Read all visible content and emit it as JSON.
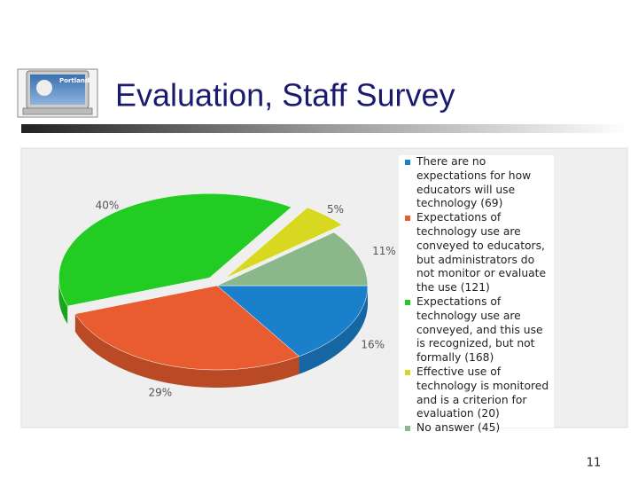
{
  "slide": {
    "title": "Evaluation, Staff Survey",
    "page_number": "11",
    "logo_text": "Portland"
  },
  "chart_data": {
    "type": "pie",
    "categories": [
      "There are no expectations for how educators will use technology (69)",
      "Expectations of technology use are conveyed to educators, but administrators do not monitor or evaluate the use (121)",
      "Expectations of technology use are conveyed, and this use is recognized, but not formally (168)",
      "Effective use of technology is monitored and is a criterion for evaluation (20)",
      "No answer (45)"
    ],
    "values": [
      16,
      29,
      40,
      5,
      11
    ],
    "value_labels": [
      "16%",
      "29%",
      "40%",
      "5%",
      "11%"
    ],
    "colors": [
      "#1a80cc",
      "#e85c30",
      "#22cc22",
      "#d8d820",
      "#8ab88a"
    ],
    "exploded": [
      false,
      false,
      true,
      true,
      false
    ]
  }
}
